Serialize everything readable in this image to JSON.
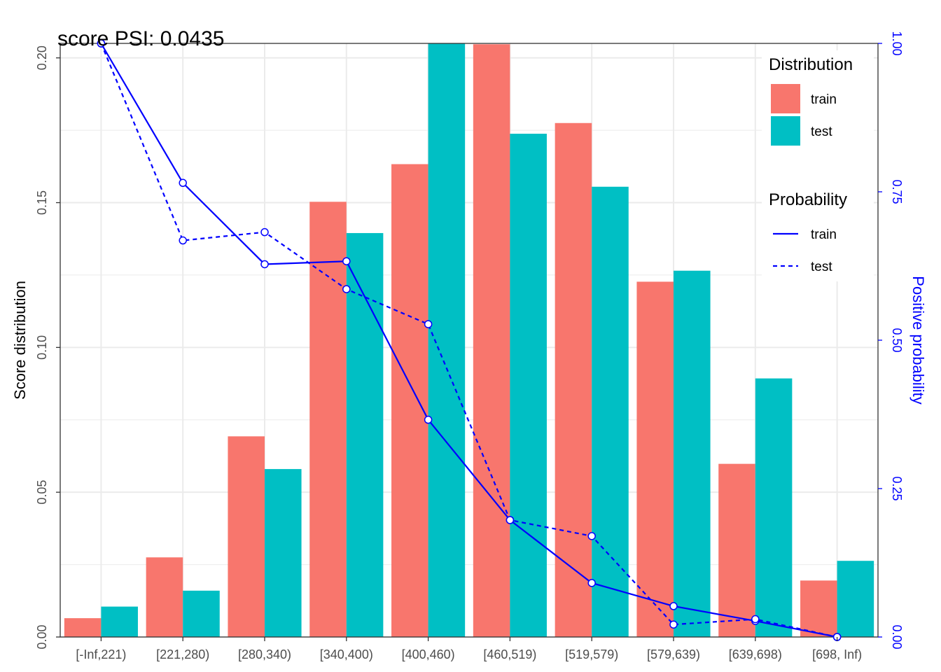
{
  "chart_data": {
    "type": "bar",
    "title": "score PSI: 0.0435",
    "xlabel": "",
    "ylabel": "Score distribution",
    "ylabel_right": "Positive probability",
    "ylim": [
      0,
      0.205
    ],
    "ylim_right": [
      0,
      1.0
    ],
    "yticks": [
      "0.00",
      "0.05",
      "0.10",
      "0.15",
      "0.20"
    ],
    "yticks_right": [
      "0.00",
      "0.25",
      "0.50",
      "0.75",
      "1.00"
    ],
    "grid": true,
    "categories": [
      "[-Inf,221)",
      "[221,280)",
      "[280,340)",
      "[340,400)",
      "[400,460)",
      "[460,519)",
      "[519,579)",
      "[579,639)",
      "[639,698)",
      "[698, Inf)"
    ],
    "bar_series": [
      {
        "name": "train",
        "color": "#F8766D",
        "values": [
          0.0065,
          0.0275,
          0.0693,
          0.1503,
          0.1633,
          0.2047,
          0.1775,
          0.1227,
          0.0598,
          0.0195
        ]
      },
      {
        "name": "test",
        "color": "#00BFC4",
        "values": [
          0.0105,
          0.016,
          0.058,
          0.1395,
          0.205,
          0.1738,
          0.1555,
          0.1265,
          0.0893,
          0.0263
        ]
      }
    ],
    "line_series": [
      {
        "name": "train",
        "color": "#0000ff",
        "dash": "solid",
        "values": [
          1.0,
          0.765,
          0.628,
          0.633,
          0.366,
          0.197,
          0.091,
          0.052,
          0.027,
          0.0
        ]
      },
      {
        "name": "test",
        "color": "#0000ff",
        "dash": "dashed",
        "values": [
          1.0,
          0.668,
          0.682,
          0.586,
          0.527,
          0.197,
          0.17,
          0.021,
          0.03,
          0.0
        ]
      }
    ],
    "legend": {
      "placement": "top-right",
      "distribution_title": "Distribution",
      "probability_title": "Probability"
    }
  }
}
